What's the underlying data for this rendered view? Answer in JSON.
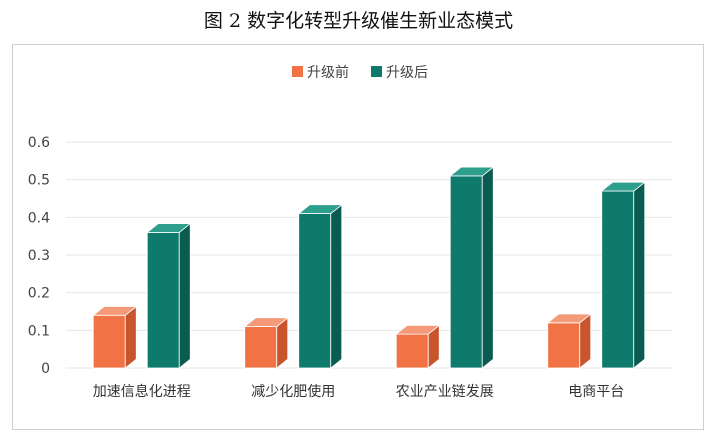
{
  "figure_title": "图 2 数字化转型升级催生新业态模式",
  "colors": {
    "before_front": "#F07245",
    "before_side": "#C9552C",
    "before_top": "#F59A78",
    "after_front": "#0E7A6B",
    "after_side": "#0A5C50",
    "after_top": "#2E9E8D",
    "grid": "#e6e6e6"
  },
  "chart_data": {
    "type": "bar",
    "title": "",
    "xlabel": "",
    "ylabel": "",
    "categories": [
      "加速信息化进程",
      "减少化肥使用",
      "农业产业链发展",
      "电商平台"
    ],
    "series": [
      {
        "name": "升级前",
        "values": [
          0.14,
          0.11,
          0.09,
          0.12
        ]
      },
      {
        "name": "升级后",
        "values": [
          0.36,
          0.41,
          0.51,
          0.47
        ]
      }
    ],
    "ylim": [
      0,
      0.6
    ],
    "yticks": [
      "0",
      "0.1",
      "0.2",
      "0.3",
      "0.4",
      "0.5",
      "0.6"
    ],
    "grid": true,
    "legend_position": "top-center"
  }
}
